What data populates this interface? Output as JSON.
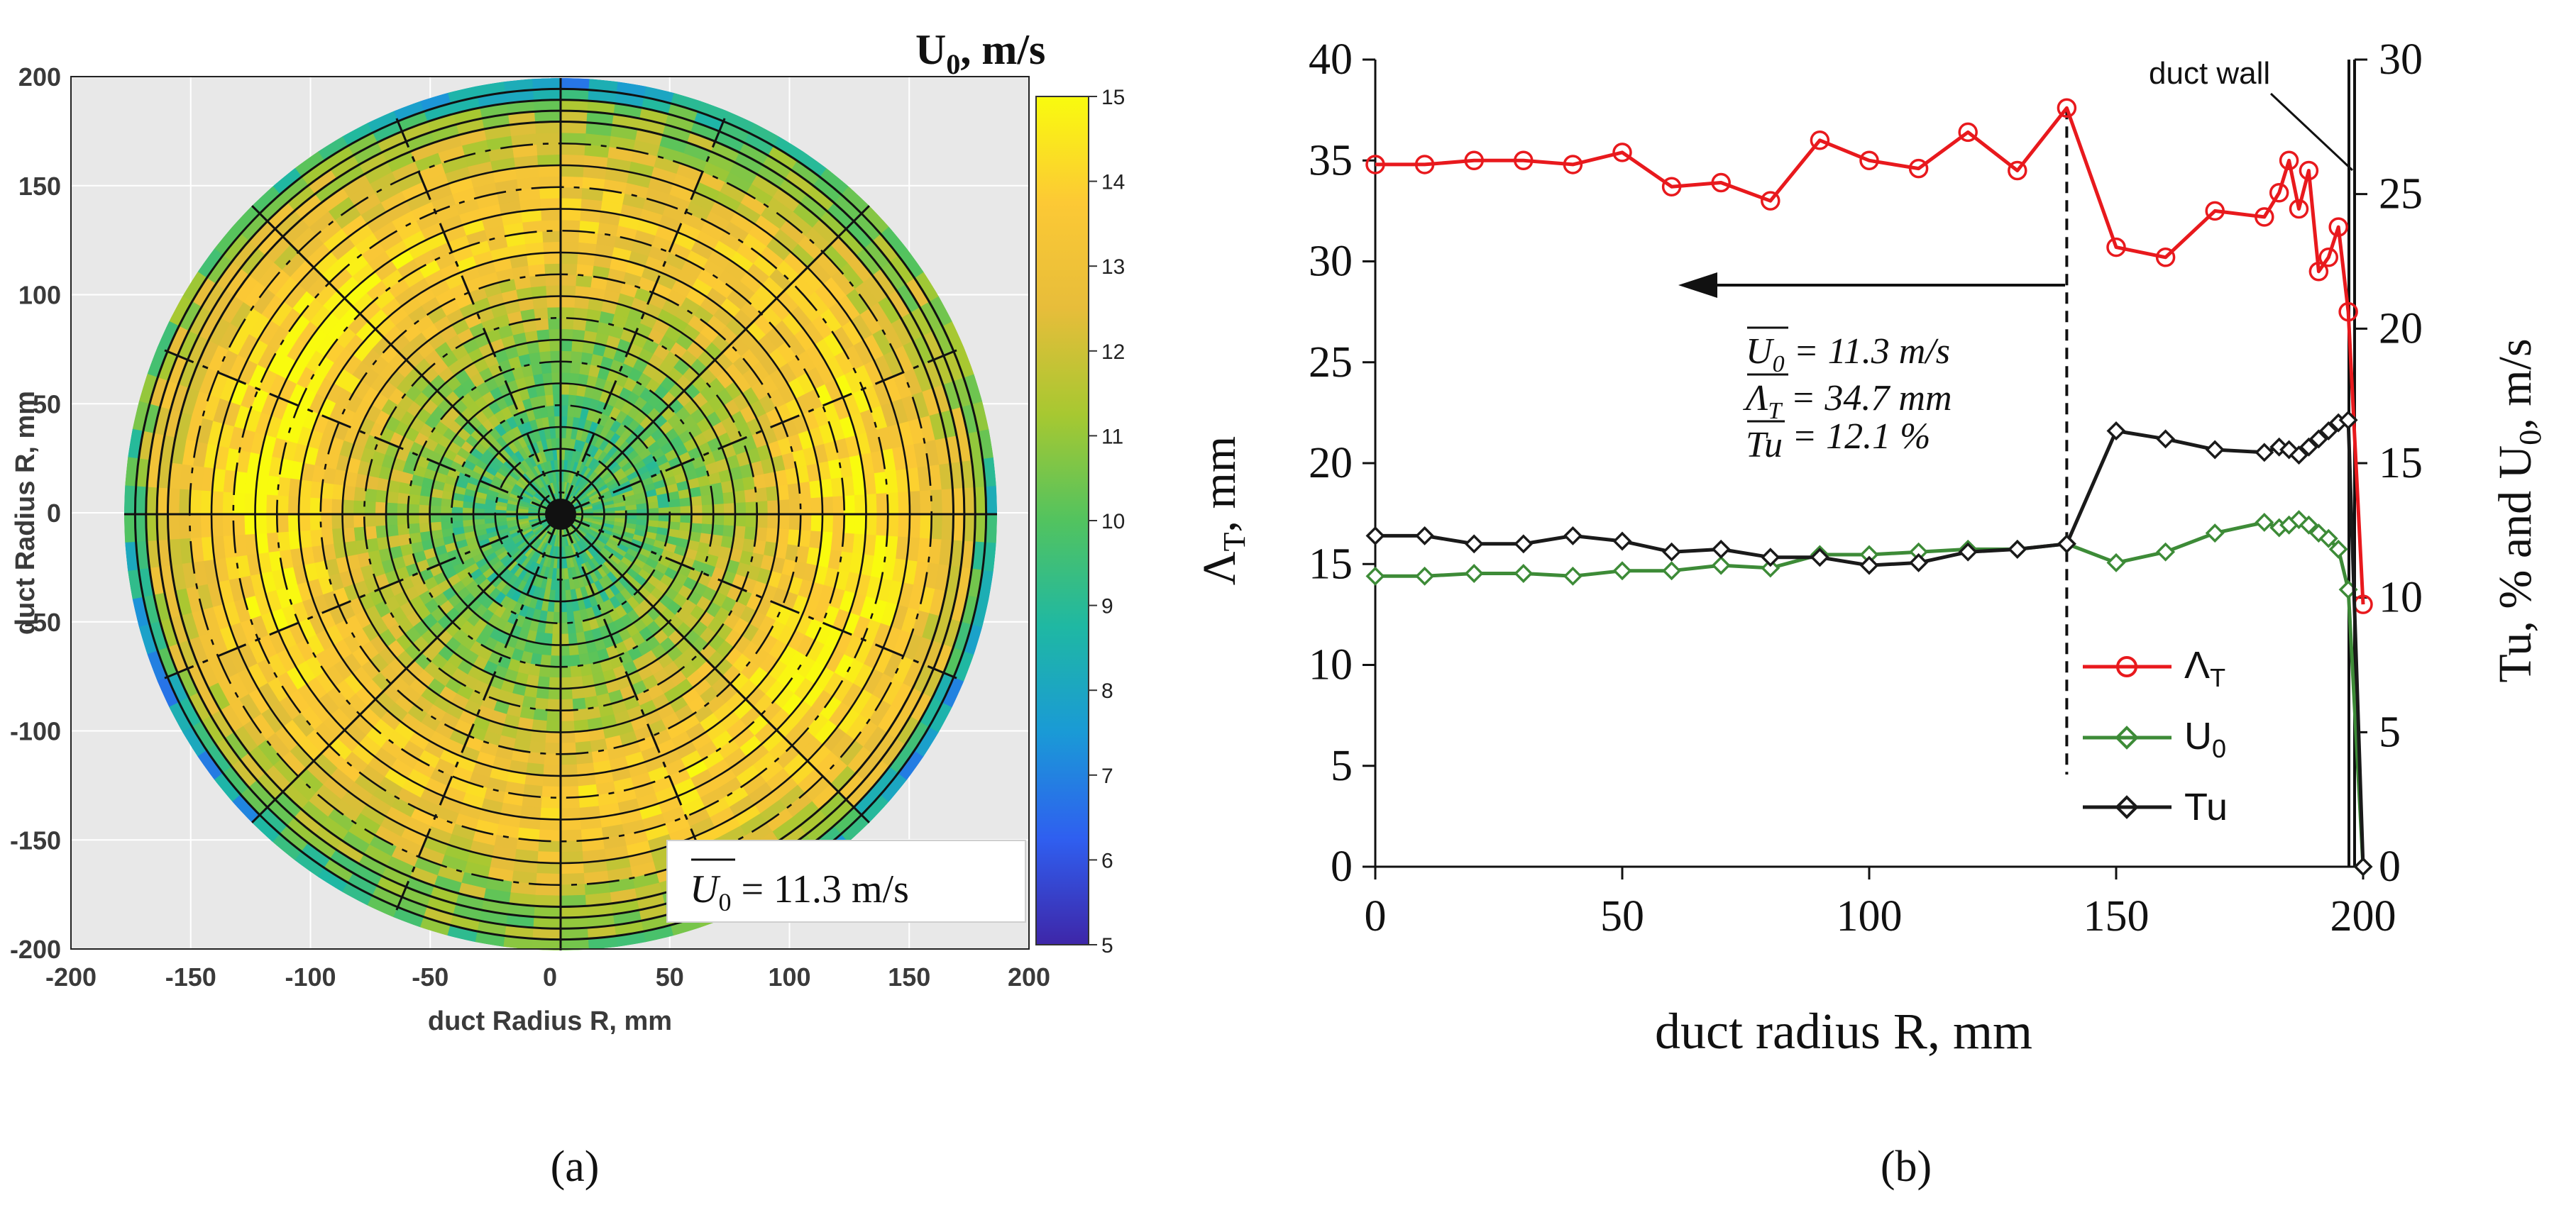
{
  "panels": {
    "a_label": "(a)",
    "b_label": "(b)"
  },
  "chart_data": [
    {
      "type": "heatmap",
      "panel": "a",
      "colorbar": {
        "title": "U0, m/s",
        "title_main": "U",
        "title_sub": "0",
        "title_rest": ", m/s",
        "min": 5,
        "max": 15,
        "ticks": [
          "15",
          "14",
          "13",
          "12",
          "11",
          "10",
          "9",
          "8",
          "7",
          "6",
          "5"
        ],
        "colormap": [
          "#3e26a8",
          "#2f5ff0",
          "#1a9ad6",
          "#1fb8a3",
          "#52c35f",
          "#a7c831",
          "#e7bd3a",
          "#fcc935",
          "#f9fb0e"
        ]
      },
      "xlabel": "duct Radius R, mm",
      "ylabel": "duct Radius R, mm",
      "xlim": [
        -200,
        200
      ],
      "ylim": [
        -200,
        200
      ],
      "xticks": [
        "-200",
        "-150",
        "-100",
        "-50",
        "0",
        "50",
        "100",
        "150",
        "200"
      ],
      "yticks": [
        "200",
        "150",
        "100",
        "50",
        "0",
        "-50",
        "-100",
        "-150",
        "-200"
      ],
      "annotation": {
        "text": "U0 = 11.3 m/s",
        "main": "U",
        "sub": "0",
        "rest": " = 11.3 m/s"
      },
      "field_description": "circular duct cross-section, colour = mean velocity U0; radial and circumferential traverse lines overlaid",
      "rings_mm": [
        195,
        190,
        185,
        180,
        170,
        160,
        150,
        140,
        130,
        120,
        110,
        100,
        90,
        80,
        70,
        60,
        50,
        40,
        30,
        20,
        10
      ],
      "radial_line_angles_deg": [
        0,
        22.5,
        45,
        67.5,
        90,
        112.5,
        135,
        157.5,
        180,
        202.5,
        225,
        247.5,
        270,
        292.5,
        315,
        337.5
      ]
    },
    {
      "type": "line",
      "panel": "b",
      "xlabel": "duct radius R, mm",
      "ylabel_left": "ΛT, mm",
      "ylabel_left_main": "Λ",
      "ylabel_left_sub": "T",
      "ylabel_left_rest": ", mm",
      "ylabel_right": "Tu, % and U0, m/s",
      "ylabel_right_a": "Tu, % and U",
      "ylabel_right_sub": "0",
      "ylabel_right_b": ", m/s",
      "xlim": [
        0,
        200
      ],
      "ylim_left": [
        0,
        40
      ],
      "ylim_right": [
        0,
        30
      ],
      "xticks": [
        "0",
        "50",
        "100",
        "150",
        "200"
      ],
      "yticks_left": [
        "0",
        "5",
        "10",
        "15",
        "20",
        "25",
        "30",
        "35",
        "40"
      ],
      "yticks_right": [
        "0",
        "5",
        "10",
        "15",
        "20",
        "25",
        "30"
      ],
      "series": [
        {
          "name": "ΛT",
          "legend_main": "Λ",
          "legend_sub": "T",
          "axis": "left",
          "color": "#e8191d",
          "marker": "circle",
          "x": [
            0,
            10,
            20,
            30,
            40,
            50,
            60,
            70,
            80,
            90,
            100,
            110,
            120,
            130,
            140,
            150,
            160,
            170,
            180,
            183,
            185,
            187,
            189,
            191,
            193,
            195,
            197,
            200
          ],
          "y": [
            34.8,
            34.8,
            35.0,
            35.0,
            34.8,
            35.4,
            33.7,
            33.9,
            33.0,
            36.0,
            35.0,
            34.6,
            36.4,
            34.5,
            37.6,
            30.7,
            30.2,
            32.5,
            32.2,
            33.4,
            35.0,
            32.6,
            34.5,
            29.5,
            30.2,
            31.7,
            27.5,
            13.0
          ]
        },
        {
          "name": "U0",
          "legend_main": "U",
          "legend_sub": "0",
          "axis": "right",
          "color": "#3d8b37",
          "marker": "diamond",
          "x": [
            0,
            10,
            20,
            30,
            40,
            50,
            60,
            70,
            80,
            90,
            100,
            110,
            120,
            130,
            140,
            150,
            160,
            170,
            180,
            183,
            185,
            187,
            189,
            191,
            193,
            195,
            197,
            200
          ],
          "y": [
            10.8,
            10.8,
            10.9,
            10.9,
            10.8,
            11.0,
            11.0,
            11.2,
            11.1,
            11.6,
            11.6,
            11.7,
            11.8,
            11.8,
            12.0,
            11.3,
            11.7,
            12.4,
            12.8,
            12.6,
            12.7,
            12.9,
            12.7,
            12.4,
            12.2,
            11.8,
            10.3,
            0
          ]
        },
        {
          "name": "Tu",
          "legend_main": "Tu",
          "legend_sub": "",
          "axis": "right",
          "color": "#1a1a1a",
          "marker": "diamond",
          "x": [
            0,
            10,
            20,
            30,
            40,
            50,
            60,
            70,
            80,
            90,
            100,
            110,
            120,
            130,
            140,
            150,
            160,
            170,
            180,
            183,
            185,
            187,
            189,
            191,
            193,
            195,
            197,
            200
          ],
          "y": [
            12.3,
            12.3,
            12.0,
            12.0,
            12.3,
            12.1,
            11.7,
            11.8,
            11.5,
            11.5,
            11.2,
            11.3,
            11.7,
            11.8,
            12.0,
            16.2,
            15.9,
            15.5,
            15.4,
            15.6,
            15.5,
            15.3,
            15.6,
            15.9,
            16.2,
            16.5,
            16.6,
            0
          ]
        }
      ],
      "legend_position": "lower-right",
      "annotations": {
        "duct_wall": "duct wall",
        "duct_wall_x": 197,
        "dashed_x": 140,
        "stats": [
          {
            "main": "U",
            "sub": "0",
            "rest": " = 11.3 m/s"
          },
          {
            "main": "Λ",
            "sub": "T",
            "rest": " = 34.7 mm"
          },
          {
            "main": "Tu",
            "sub": "",
            "rest": " = 12.1 %"
          }
        ]
      }
    }
  ]
}
